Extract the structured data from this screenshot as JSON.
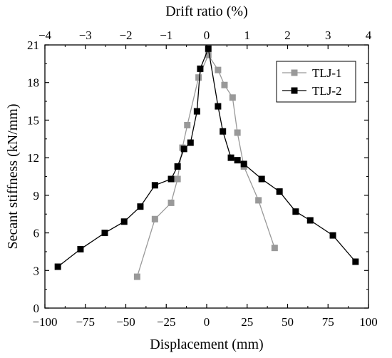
{
  "chart_data": {
    "type": "line",
    "xlabel": "Displacement (mm)",
    "ylabel": "Secant stiffness (kN/mm)",
    "x2label": "Drift ratio (%)",
    "xlim": [
      -100,
      100
    ],
    "ylim": [
      0,
      21
    ],
    "x2lim": [
      -4,
      4
    ],
    "xticks": [
      -100,
      -75,
      -50,
      -25,
      0,
      25,
      50,
      75,
      100
    ],
    "yticks": [
      0,
      3,
      6,
      9,
      12,
      15,
      18,
      21
    ],
    "x2ticks": [
      -4,
      -3,
      -2,
      -1,
      0,
      1,
      2,
      3,
      4
    ],
    "legend_position": "top-right",
    "grid": false,
    "series": [
      {
        "name": "TLJ-1",
        "color": "#999999",
        "marker": "square",
        "points": [
          [
            -43,
            2.5
          ],
          [
            -32,
            7.1
          ],
          [
            -22,
            8.4
          ],
          [
            -18,
            10.3
          ],
          [
            -15,
            12.8
          ],
          [
            -12,
            14.6
          ],
          [
            -5,
            18.4
          ],
          [
            1,
            20.2
          ],
          [
            7,
            19.0
          ],
          [
            11,
            17.8
          ],
          [
            16,
            16.8
          ],
          [
            19,
            14.0
          ],
          [
            23,
            11.3
          ],
          [
            32,
            8.6
          ],
          [
            42,
            4.8
          ]
        ]
      },
      {
        "name": "TLJ-2",
        "color": "#000000",
        "marker": "square",
        "points": [
          [
            -92,
            3.3
          ],
          [
            -78,
            4.7
          ],
          [
            -63,
            6.0
          ],
          [
            -51,
            6.9
          ],
          [
            -41,
            8.1
          ],
          [
            -32,
            9.8
          ],
          [
            -22,
            10.3
          ],
          [
            -18,
            11.3
          ],
          [
            -14,
            12.7
          ],
          [
            -10,
            13.2
          ],
          [
            -6,
            15.7
          ],
          [
            -4,
            19.1
          ],
          [
            1,
            20.7
          ],
          [
            7,
            16.1
          ],
          [
            10,
            14.1
          ],
          [
            15,
            12.0
          ],
          [
            19,
            11.8
          ],
          [
            23,
            11.5
          ],
          [
            34,
            10.3
          ],
          [
            45,
            9.3
          ],
          [
            55,
            7.7
          ],
          [
            64,
            7.0
          ],
          [
            78,
            5.8
          ],
          [
            92,
            3.7
          ]
        ]
      }
    ]
  }
}
